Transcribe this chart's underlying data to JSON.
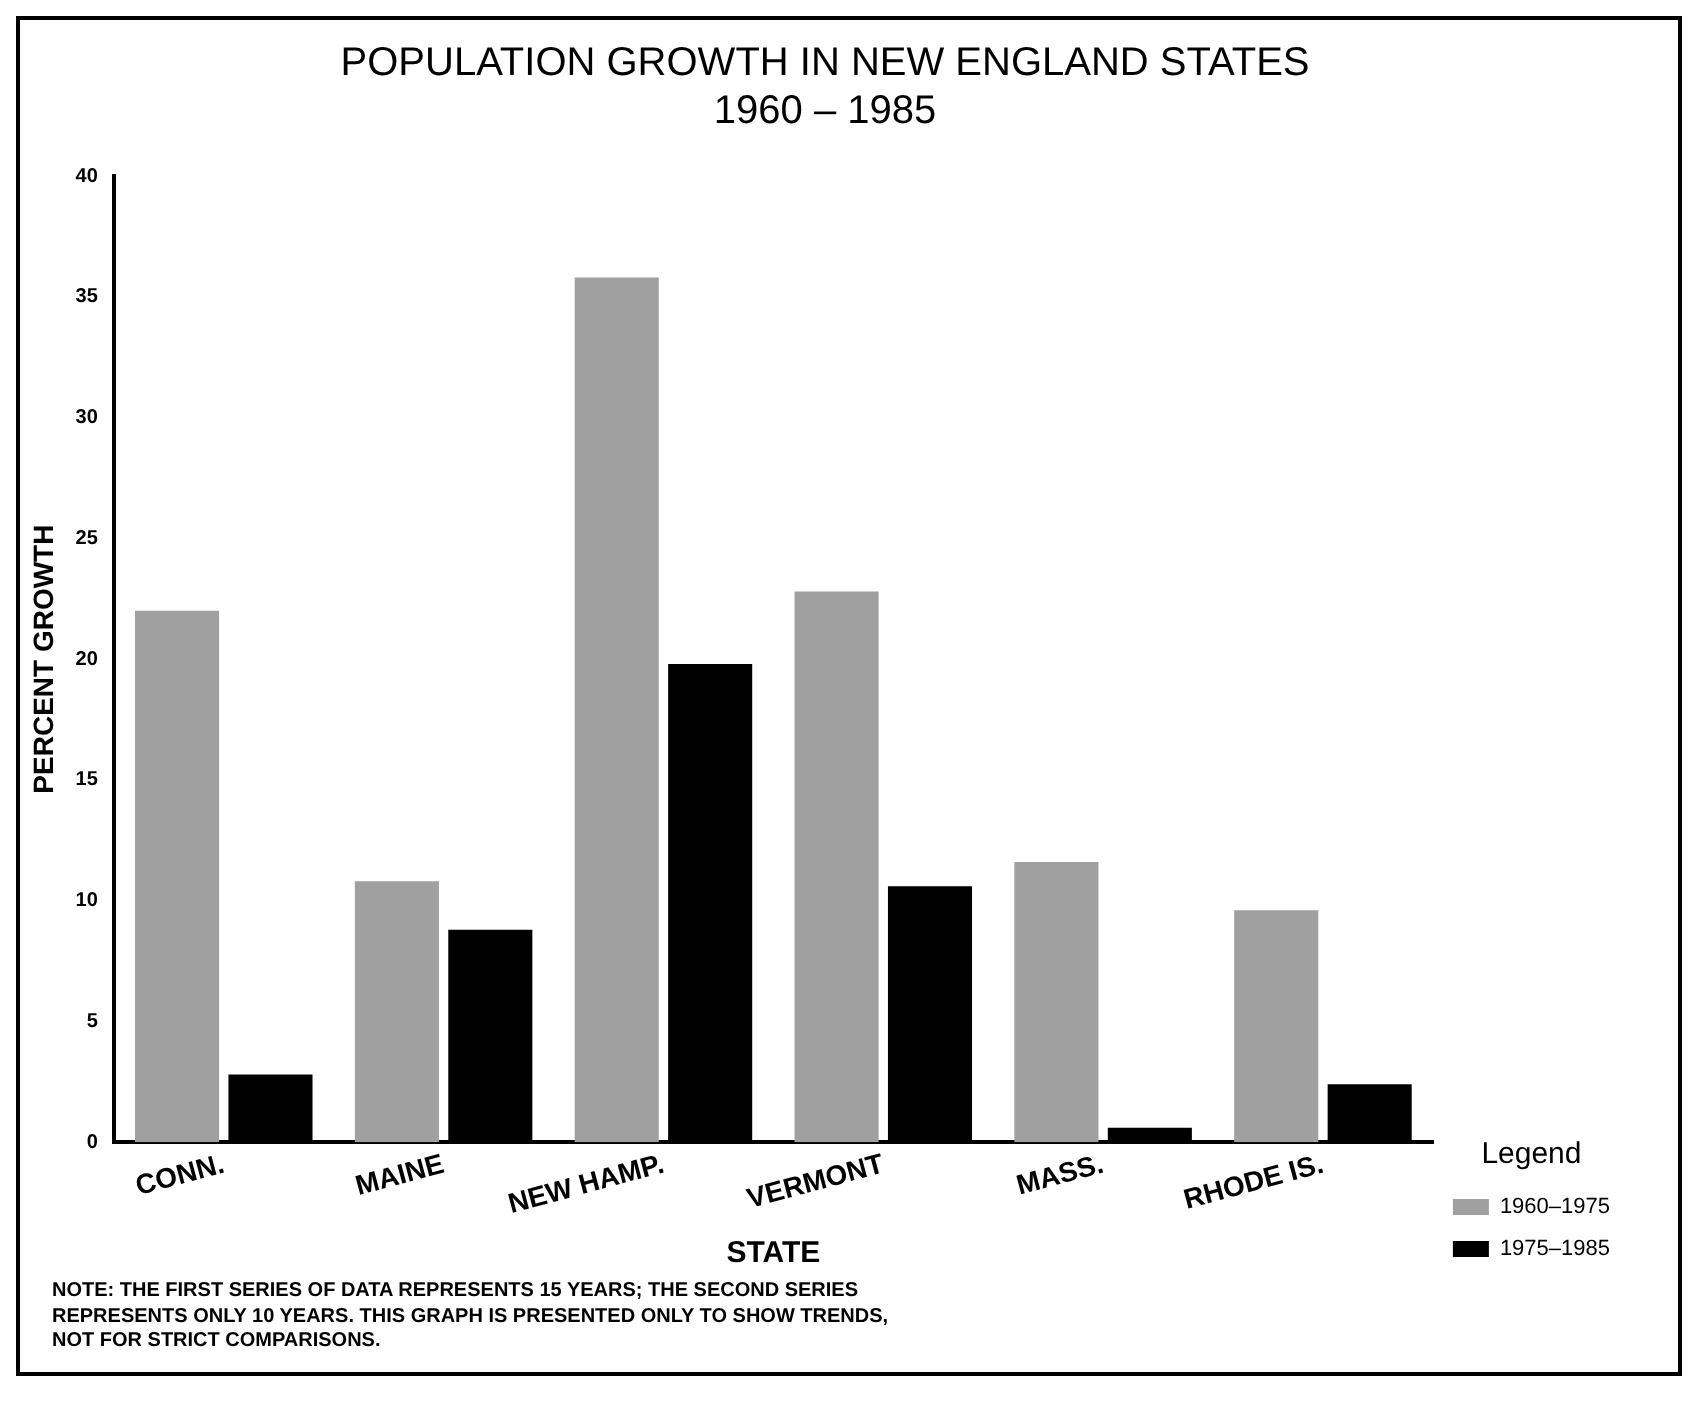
{
  "chart_data": {
    "type": "bar",
    "title": "POPULATION GROWTH IN NEW ENGLAND STATES",
    "subtitle": "1960 – 1985",
    "xlabel": "STATE",
    "ylabel": "PERCENT GROWTH",
    "legend_title": "Legend",
    "categories": [
      "CONN.",
      "MAINE",
      "NEW HAMP.",
      "VERMONT",
      "MASS.",
      "RHODE IS."
    ],
    "series": [
      {
        "name": "1960–1975",
        "color": "#a0a0a0",
        "values": [
          22,
          10.8,
          35.8,
          22.8,
          11.6,
          9.6
        ]
      },
      {
        "name": "1975–1985",
        "color": "#000000",
        "values": [
          2.8,
          8.8,
          19.8,
          10.6,
          0.6,
          2.4
        ]
      }
    ],
    "ylim": [
      0,
      40
    ],
    "yticks": [
      0,
      5,
      10,
      15,
      20,
      25,
      30,
      35,
      40
    ],
    "grid": false,
    "legend": "bottom right",
    "annotations": [
      "NOTE: THE FIRST SERIES OF DATA REPRESENTS 15 YEARS; THE SECOND SERIES REPRESENTS ONLY 10 YEARS. THIS GRAPH IS PRESENTED ONLY TO SHOW TRENDS, NOT FOR STRICT COMPARISONS."
    ]
  }
}
